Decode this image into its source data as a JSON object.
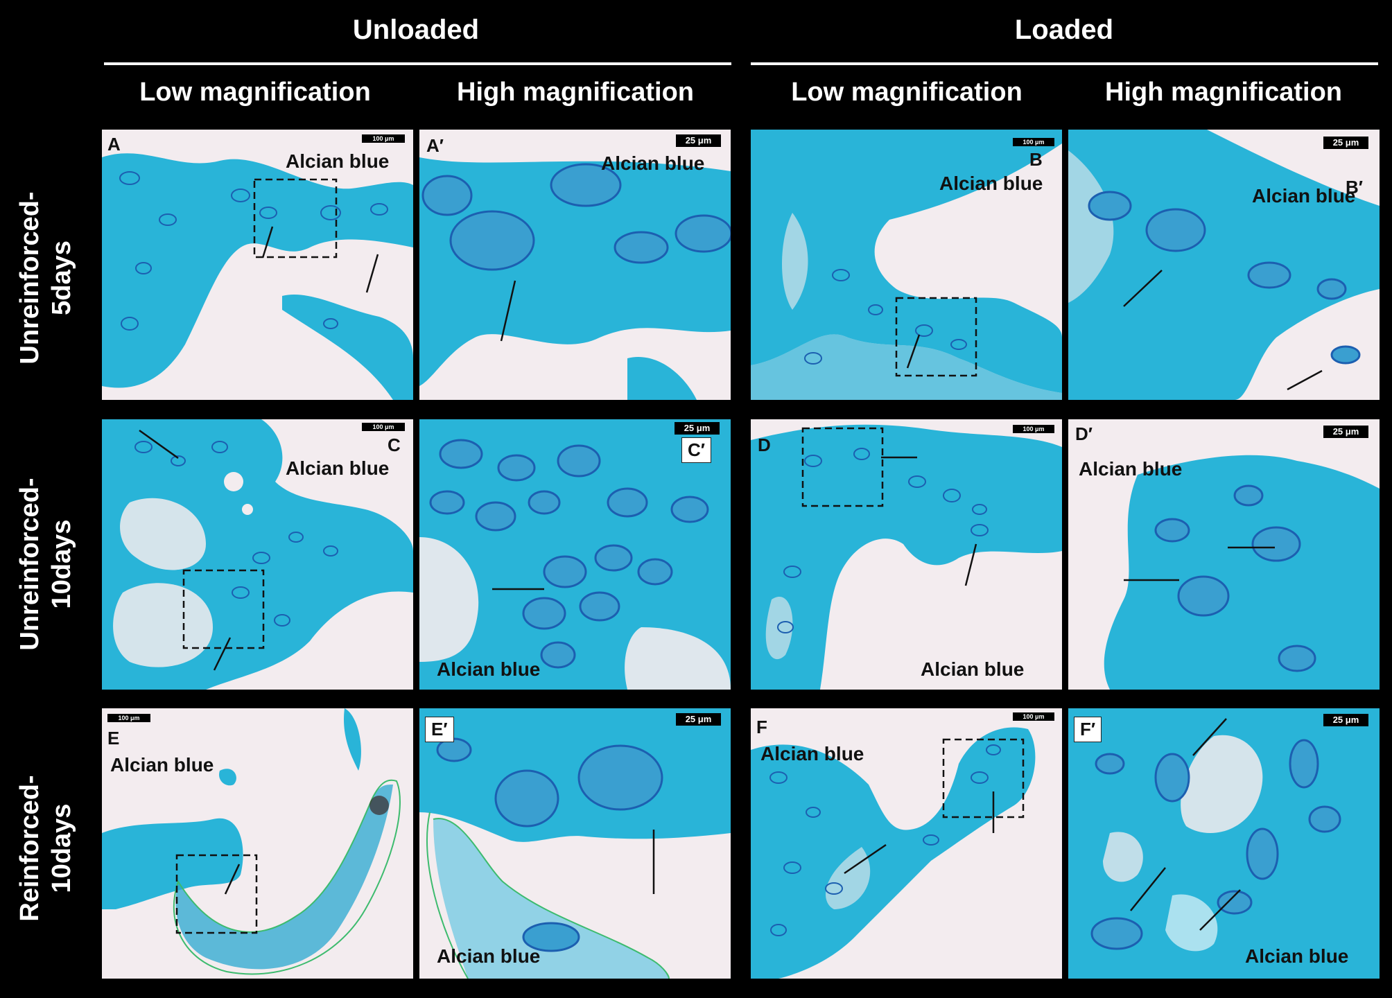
{
  "groups": {
    "unloaded": "Unloaded",
    "loaded": "Loaded"
  },
  "columns": {
    "c1": "Low magnification",
    "c2": "High magnification",
    "c3": "Low magnification",
    "c4": "High magnification"
  },
  "rows": {
    "r1": [
      "Unreinforced-",
      "5days"
    ],
    "r2": [
      "Unreinforced-",
      "10days"
    ],
    "r3": [
      "Reinforced-",
      "10days"
    ]
  },
  "stain": "Alcian blue",
  "scalebars": {
    "low": "100 μm",
    "high": "25 μm"
  },
  "panels": [
    {
      "letter": "A"
    },
    {
      "letter": "A′"
    },
    {
      "letter": "B"
    },
    {
      "letter": "B′"
    },
    {
      "letter": "C"
    },
    {
      "letter": "C′"
    },
    {
      "letter": "D"
    },
    {
      "letter": "D′"
    },
    {
      "letter": "E"
    },
    {
      "letter": "E′"
    },
    {
      "letter": "F"
    },
    {
      "letter": "F′"
    }
  ],
  "colors": {
    "tissue": "#29b4d8",
    "tissue_dark": "#1c5fb0",
    "background": "#f3ecef",
    "outline": "#3dbb6e"
  }
}
